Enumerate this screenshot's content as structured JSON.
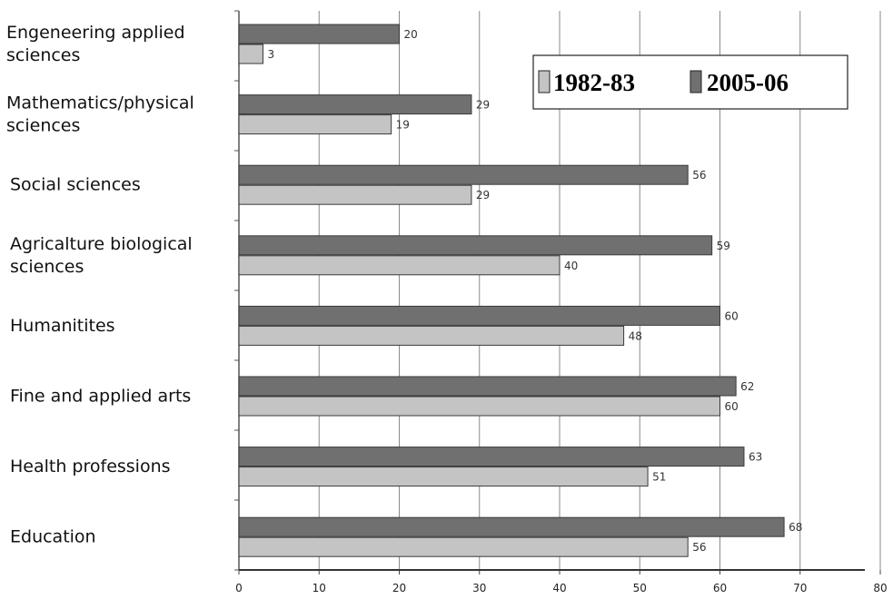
{
  "chart_data": {
    "type": "bar",
    "orientation": "horizontal",
    "categories": [
      "Engeneering applied sciences",
      "Mathematics/physical sciences",
      "Social sciences",
      "Agricalture biological sciences",
      "Humanitites",
      "Fine and applied arts",
      "Health professions",
      "Education"
    ],
    "series": [
      {
        "name": "2005-06",
        "color": "#707070",
        "values": [
          20,
          29,
          56,
          59,
          60,
          62,
          63,
          68
        ]
      },
      {
        "name": "1982-83",
        "color": "#c4c4c4",
        "values": [
          3,
          19,
          29,
          40,
          48,
          60,
          51,
          56
        ]
      }
    ],
    "xlim": [
      0,
      80
    ],
    "xticks": [
      "0",
      "10",
      "20",
      "30",
      "40",
      "50",
      "60",
      "70",
      "80"
    ],
    "grid": true,
    "legend": {
      "position": "top-right",
      "items": [
        {
          "label": "1982-83",
          "color": "#c4c4c4"
        },
        {
          "label": "2005-06",
          "color": "#707070"
        }
      ]
    }
  }
}
